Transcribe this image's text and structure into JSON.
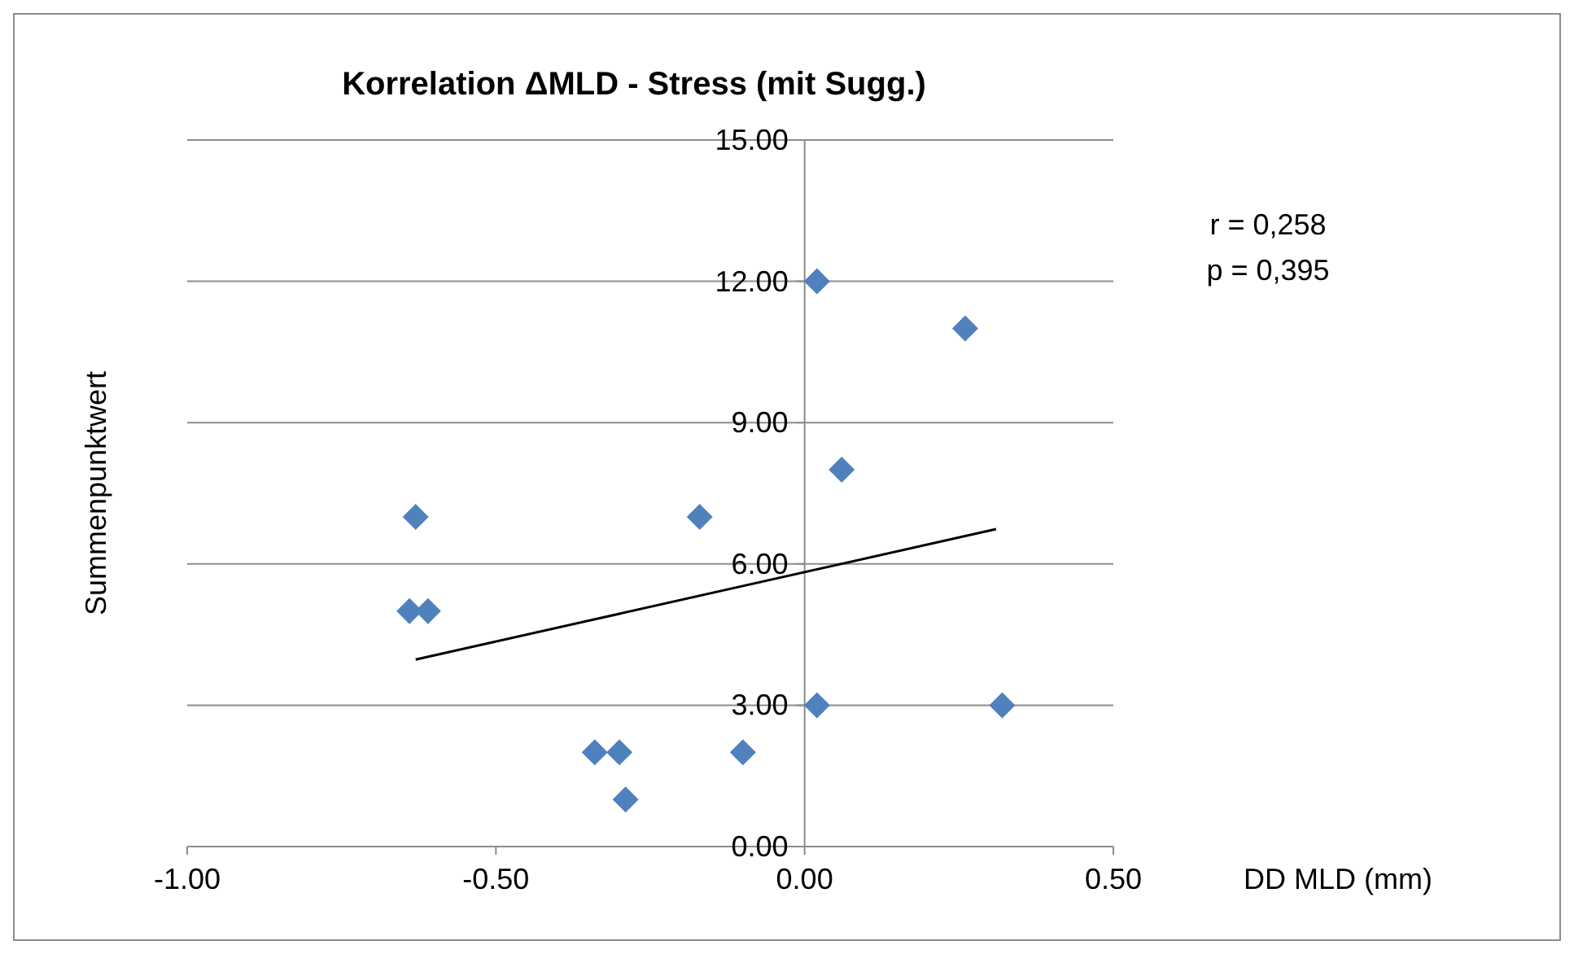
{
  "chart_data": {
    "type": "scatter",
    "title": "Korrelation ΔMLD - Stress (mit Sugg.)",
    "xlabel": "DD MLD  (mm)",
    "ylabel": "Summenpunktwert",
    "xlim": [
      -1,
      0.5
    ],
    "xticks": [
      {
        "value": -1,
        "label": "-1.00"
      },
      {
        "value": -0.5,
        "label": "-0.50"
      },
      {
        "value": 0,
        "label": "0.00"
      },
      {
        "value": 0.5,
        "label": "0.50"
      }
    ],
    "ylim": [
      0,
      15
    ],
    "yticks": [
      {
        "value": 0,
        "label": "0.00"
      },
      {
        "value": 3,
        "label": "3.00"
      },
      {
        "value": 6,
        "label": "6.00"
      },
      {
        "value": 9,
        "label": "9.00"
      },
      {
        "value": 12,
        "label": "12.00"
      },
      {
        "value": 15,
        "label": "15.00"
      }
    ],
    "grid": "y",
    "series": [
      {
        "marker": "diamond",
        "color": "#4f81bd",
        "x": [
          0.02,
          0.26,
          0.06,
          -0.63,
          -0.17,
          -0.64,
          -0.61,
          -0.34,
          -0.3,
          -0.29,
          -0.1,
          0.02,
          0.32
        ],
        "values": [
          12,
          11,
          8,
          7,
          7,
          5,
          5,
          2,
          2,
          1,
          2,
          3,
          3
        ]
      },
      {
        "type": "line",
        "marker": "none",
        "line_style": "solid",
        "color": "#000000",
        "x": [
          -0.63,
          0.31
        ],
        "values": [
          3.97,
          6.74
        ]
      }
    ],
    "annotations": [
      "r = 0,258",
      "p = 0,395"
    ]
  }
}
